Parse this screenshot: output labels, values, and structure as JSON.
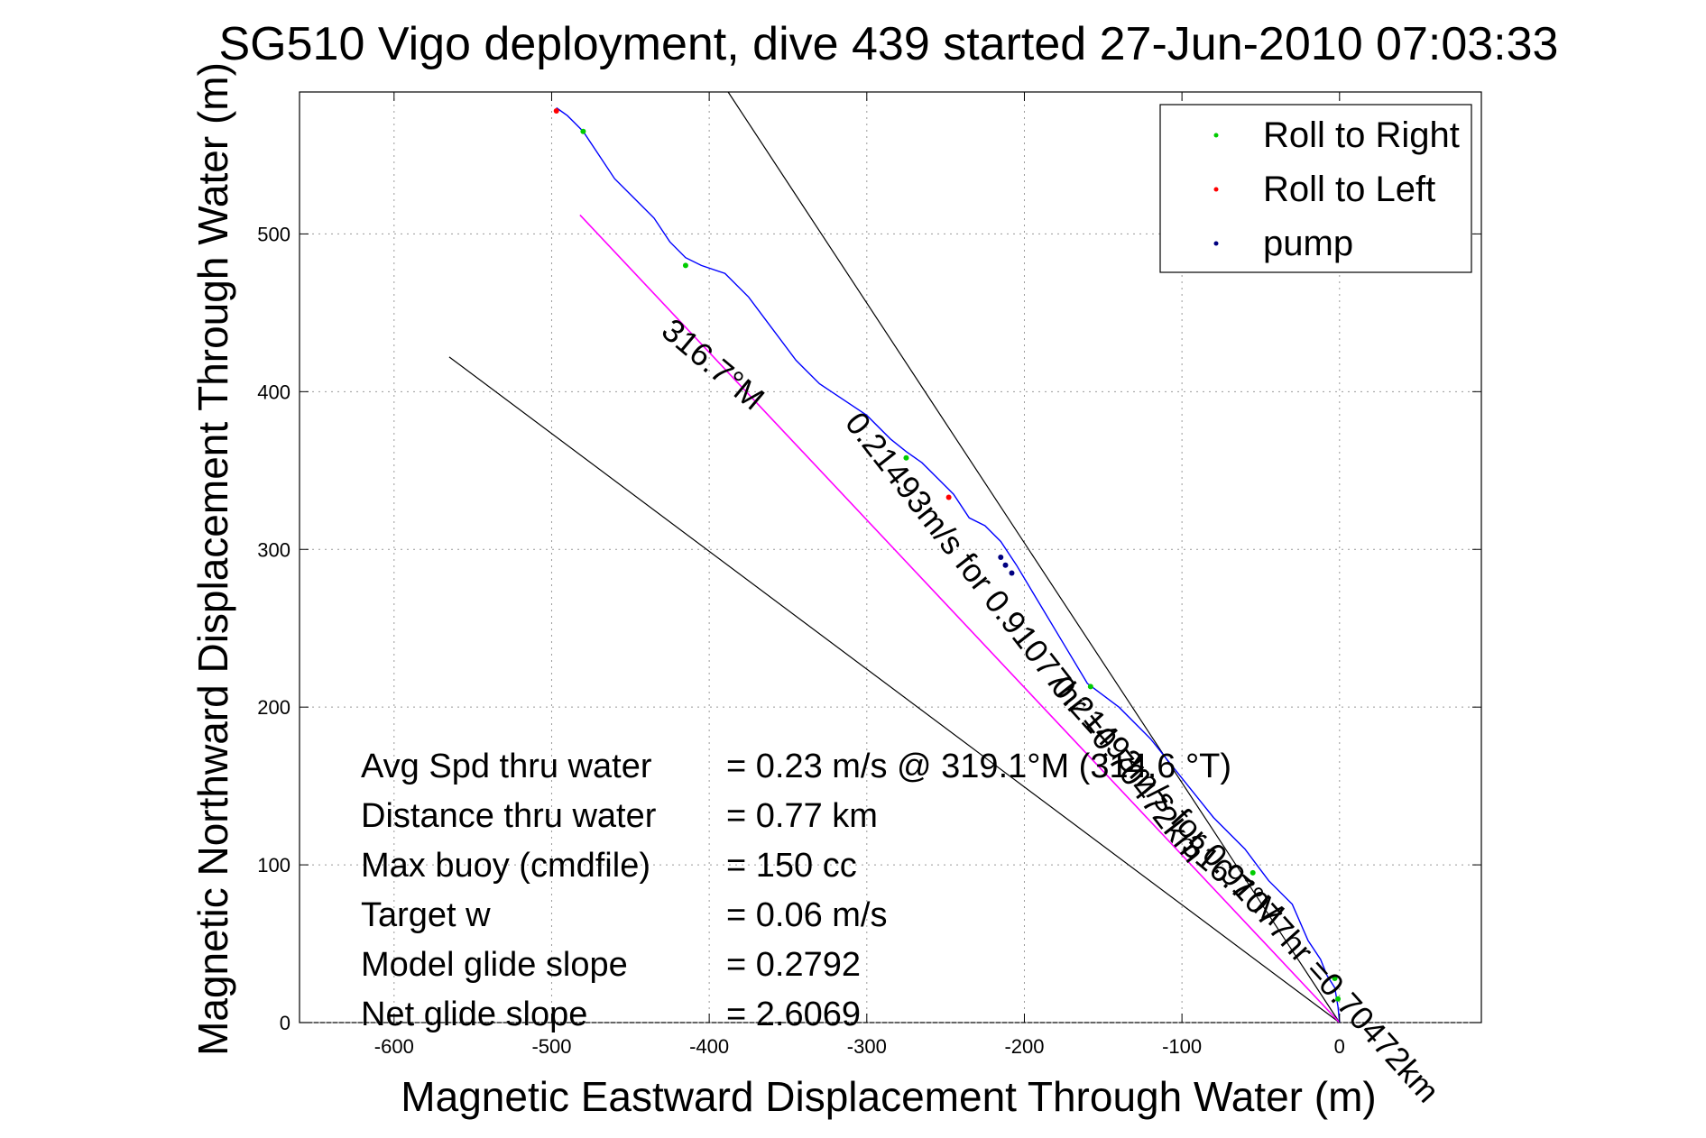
{
  "chart_data": {
    "type": "line",
    "title": "SG510 Vigo deployment, dive 439 started 27-Jun-2010 07:03:33",
    "xlabel": "Magnetic Eastward Displacement Through Water (m)",
    "ylabel": "Magnetic Northward Displacement Through Water (m)",
    "xlim": [
      -660,
      90
    ],
    "ylim": [
      0,
      590
    ],
    "xticks": [
      -600,
      -500,
      -400,
      -300,
      -200,
      -100,
      0
    ],
    "yticks": [
      0,
      100,
      200,
      300,
      400,
      500
    ],
    "grid": true,
    "legend_position": "top-right",
    "legend": [
      {
        "label": "Roll to Right",
        "color": "#00cc00"
      },
      {
        "label": "Roll to Left",
        "color": "#ff0000"
      },
      {
        "label": "pump",
        "color": "#000080"
      }
    ],
    "track": {
      "name": "track",
      "color": "#0000ff",
      "x": [
        0,
        -1,
        -3,
        -8,
        -12,
        -20,
        -30,
        -45,
        -60,
        -80,
        -100,
        -120,
        -140,
        -160,
        -175,
        -190,
        -205,
        -215,
        -225,
        -235,
        -245,
        -255,
        -265,
        -275,
        -285,
        -300,
        -315,
        -330,
        -345,
        -360,
        -375,
        -390,
        -405,
        -415,
        -425,
        -435,
        -445,
        -460,
        -470,
        -480,
        -490,
        -497
      ],
      "y": [
        0,
        10,
        22,
        30,
        40,
        52,
        75,
        90,
        110,
        130,
        155,
        180,
        200,
        215,
        240,
        265,
        290,
        305,
        315,
        320,
        335,
        345,
        355,
        362,
        370,
        385,
        395,
        405,
        420,
        440,
        460,
        475,
        480,
        485,
        495,
        510,
        520,
        535,
        550,
        565,
        575,
        580
      ]
    },
    "events": {
      "roll_right_x": [
        -1,
        -3,
        -55,
        -158,
        -275,
        -415,
        -480
      ],
      "roll_right_y": [
        15,
        28,
        95,
        213,
        358,
        480,
        565
      ],
      "roll_left_x": [
        -497,
        -248
      ],
      "roll_left_y": [
        578,
        333
      ],
      "pump_x": [
        -215,
        -212,
        -208
      ],
      "pump_y": [
        295,
        290,
        285
      ]
    },
    "avg_line": {
      "x": [
        0,
        -482
      ],
      "y": [
        0,
        512
      ],
      "color": "#ff00ff"
    },
    "ref_lines": [
      {
        "x": [
          0,
          -388
        ],
        "y": [
          0,
          590
        ],
        "color": "#000000"
      },
      {
        "x": [
          0,
          -565
        ],
        "y": [
          0,
          422
        ],
        "color": "#000000"
      }
    ],
    "annotations": [
      {
        "text": "316.7°M",
        "x": -402,
        "y": 412,
        "angle": 40
      },
      {
        "text": "0.21493m/s for 0.91077hr =0.70472km",
        "x": -205,
        "y": 240,
        "angle": 52
      },
      {
        "text": "316.7°M",
        "x": -72,
        "y": 85,
        "angle": 40
      },
      {
        "text": "0.21493m/s for 0.91077hr =0.70472km",
        "x": -65,
        "y": 80,
        "angle": 48
      }
    ],
    "stats": [
      {
        "label": "Avg Spd thru water",
        "value": "=  0.23 m/s @ 319.1°M (314.6 °T)"
      },
      {
        "label": "Distance thru water",
        "value": "=  0.77 km"
      },
      {
        "label": "Max buoy (cmdfile)",
        "value": "= 150 cc"
      },
      {
        "label": "Target w",
        "value": "= 0.06 m/s"
      },
      {
        "label": "Model glide slope",
        "value": "= 0.2792"
      },
      {
        "label": "Net glide slope",
        "value": "= 2.6069"
      }
    ]
  }
}
